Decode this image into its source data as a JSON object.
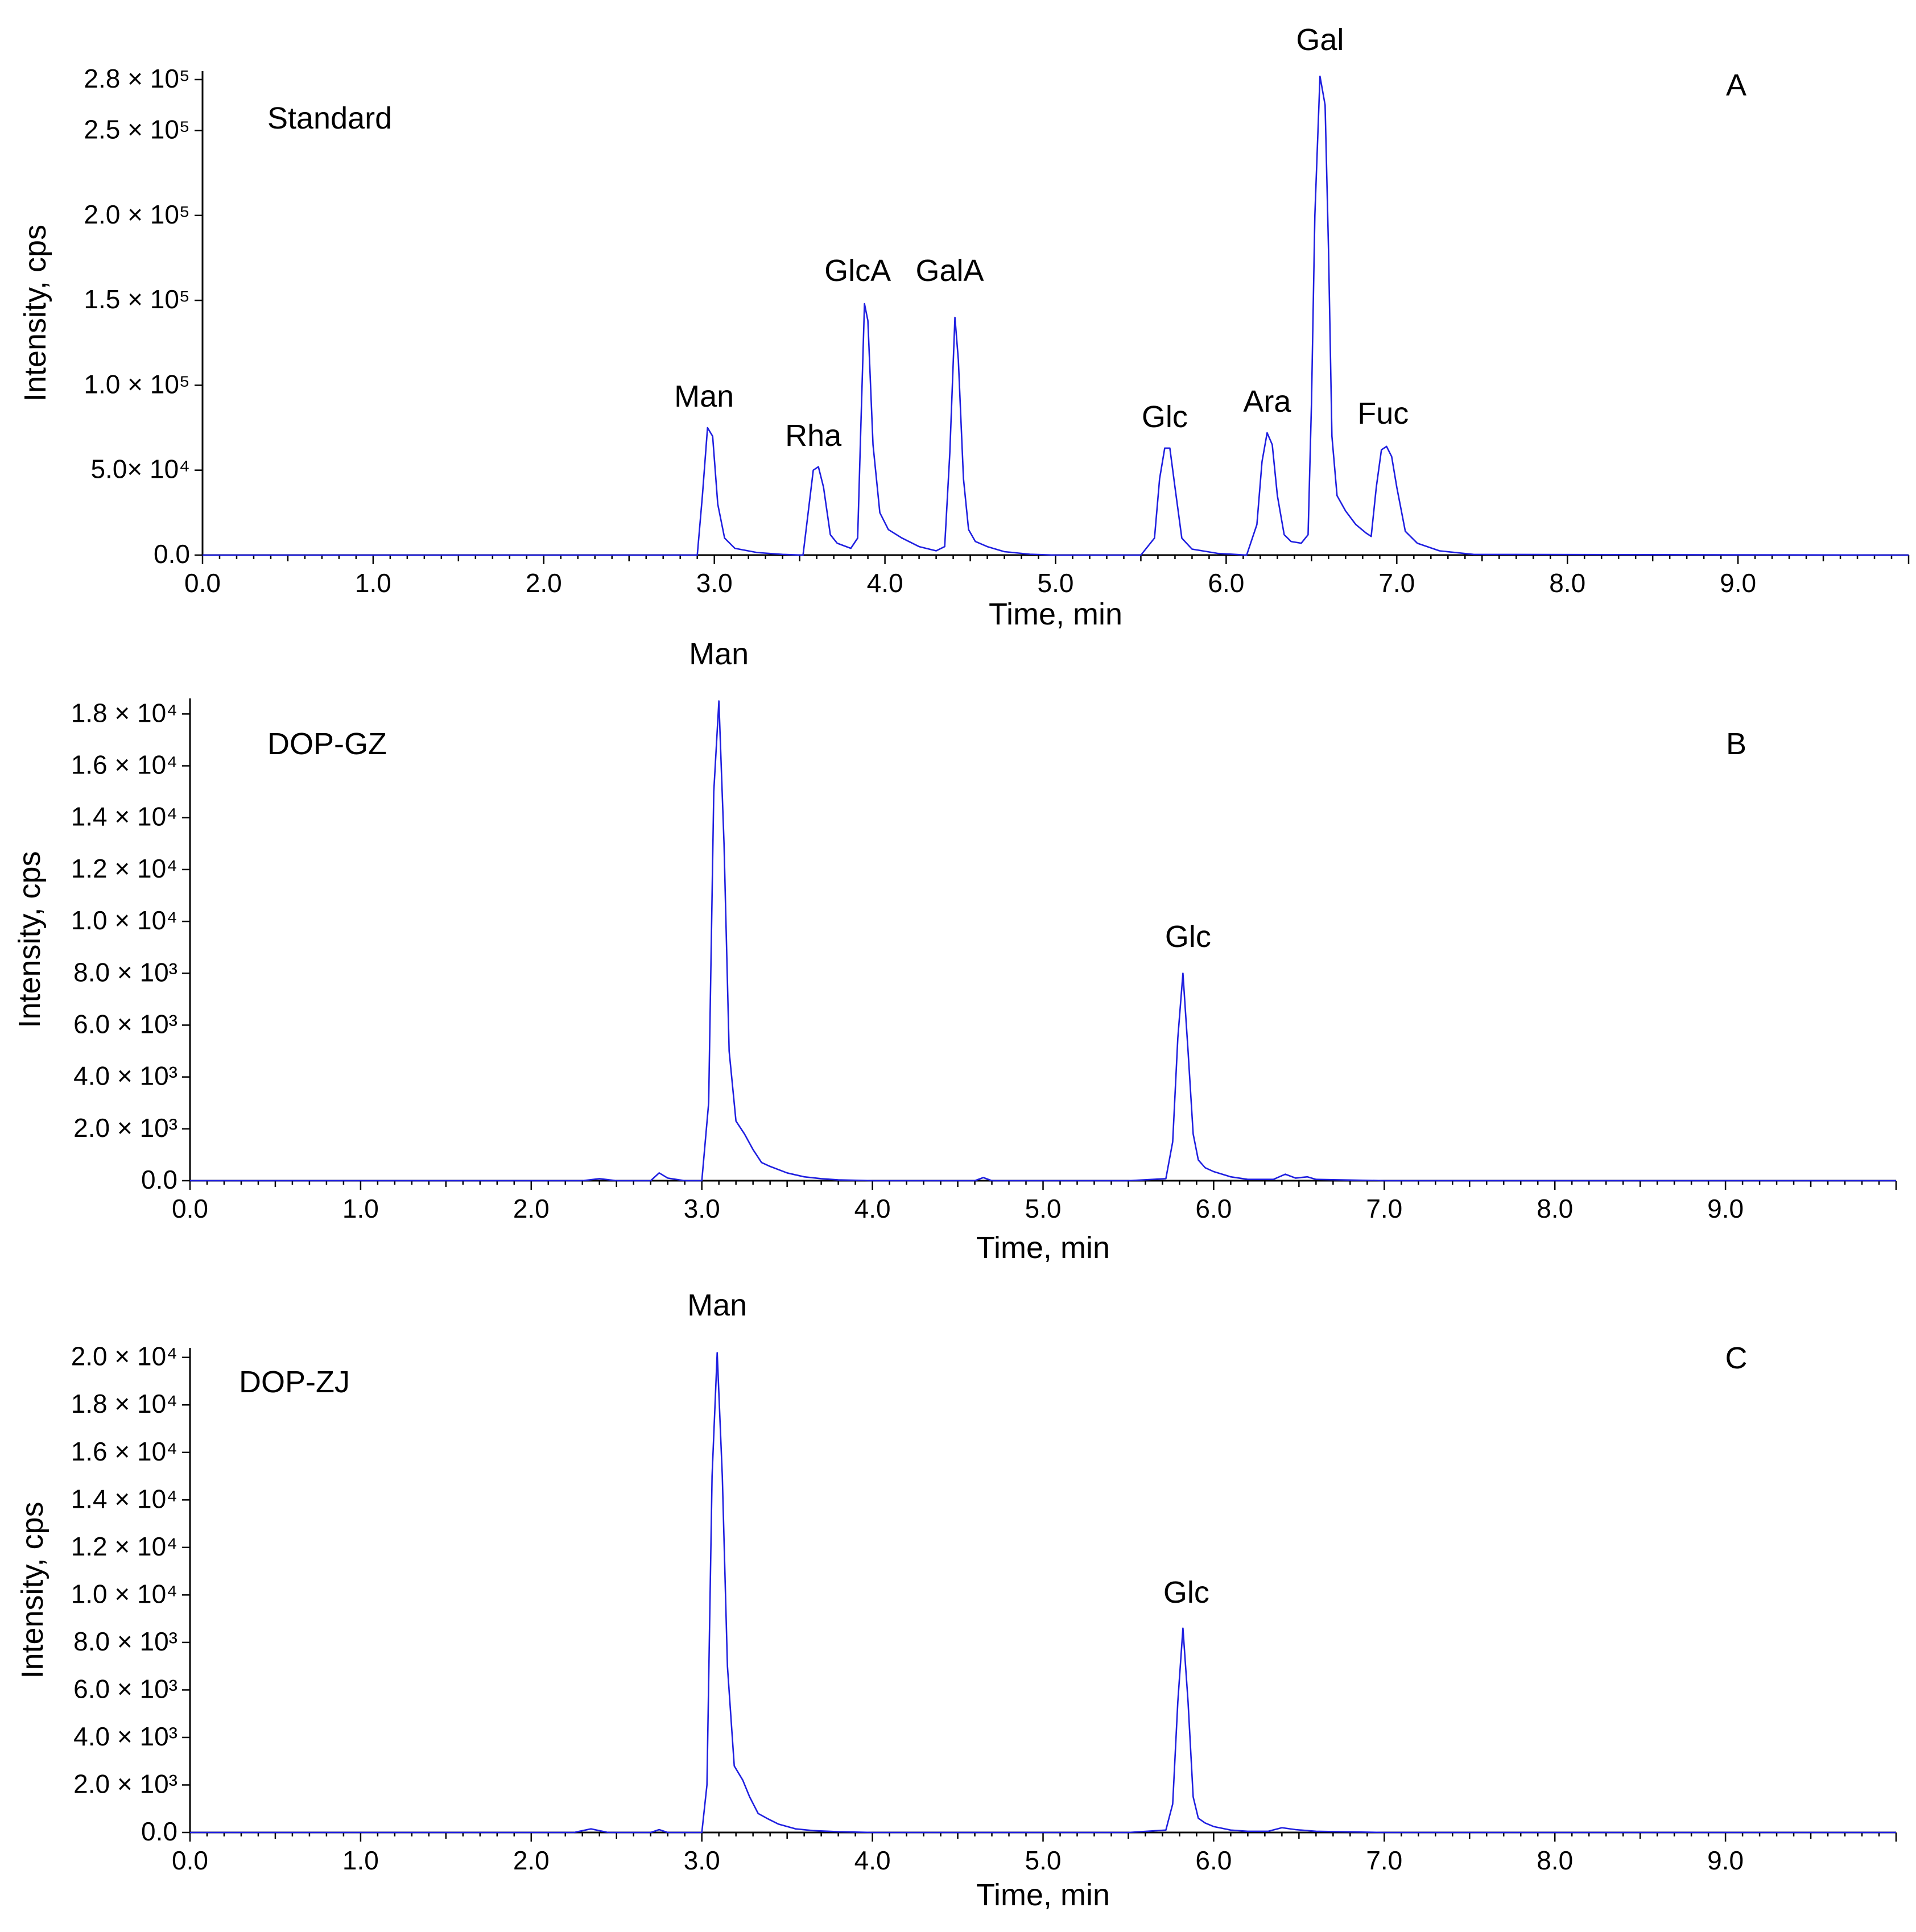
{
  "chart_data": [
    {
      "type": "line",
      "panel_letter": "A",
      "sample_label": "Standard",
      "xlabel": "Time, min",
      "ylabel": "Intensity, cps",
      "xlim": [
        0,
        10
      ],
      "ylim": [
        0,
        285000
      ],
      "xticks": [
        0,
        1,
        2,
        3,
        4,
        5,
        6,
        7,
        8,
        9
      ],
      "xtick_labels": [
        "0.0",
        "1.0",
        "2.0",
        "3.0",
        "4.0",
        "5.0",
        "6.0",
        "7.0",
        "8.0",
        "9.0"
      ],
      "yticks": [
        {
          "value": 0,
          "label": "0.0"
        },
        {
          "value": 50000,
          "label": "5.0× 10⁴"
        },
        {
          "value": 100000,
          "label": "1.0 × 10⁵"
        },
        {
          "value": 150000,
          "label": "1.5 × 10⁵"
        },
        {
          "value": 200000,
          "label": "2.0 × 10⁵"
        },
        {
          "value": 250000,
          "label": "2.5 × 10⁵"
        },
        {
          "value": 280000,
          "label": "2.8 × 10⁵"
        }
      ],
      "grid": false,
      "color": "#1f1fe0",
      "series": [
        {
          "x": [
            0,
            2.9,
            2.93,
            2.96,
            2.99,
            3.02,
            3.06,
            3.12,
            3.25,
            3.4,
            3.52,
            3.55,
            3.58,
            3.61,
            3.64,
            3.68,
            3.72,
            3.8,
            3.84,
            3.86,
            3.88,
            3.9,
            3.93,
            3.97,
            4.02,
            4.1,
            4.2,
            4.3,
            4.35,
            4.38,
            4.41,
            4.43,
            4.46,
            4.49,
            4.53,
            4.6,
            4.7,
            4.85,
            5.0,
            5.5,
            5.58,
            5.61,
            5.64,
            5.67,
            5.7,
            5.74,
            5.8,
            5.95,
            6.12,
            6.18,
            6.21,
            6.24,
            6.27,
            6.3,
            6.34,
            6.38,
            6.44,
            6.48,
            6.5,
            6.52,
            6.55,
            6.58,
            6.6,
            6.62,
            6.65,
            6.7,
            6.76,
            6.82,
            6.85,
            6.88,
            6.91,
            6.94,
            6.97,
            7.0,
            7.05,
            7.12,
            7.25,
            7.45,
            10.0
          ],
          "y": [
            0,
            0,
            35000,
            75000,
            70000,
            30000,
            10000,
            4000,
            1500,
            400,
            0,
            25000,
            50000,
            52000,
            40000,
            12000,
            7000,
            4000,
            10000,
            80000,
            148000,
            138000,
            65000,
            25000,
            15000,
            10000,
            5000,
            2500,
            5000,
            60000,
            140000,
            115000,
            45000,
            15000,
            8000,
            5000,
            2000,
            500,
            0,
            0,
            10000,
            45000,
            63000,
            63000,
            40000,
            10000,
            3500,
            1000,
            0,
            18000,
            55000,
            72000,
            65000,
            35000,
            12000,
            8000,
            7000,
            12000,
            90000,
            200000,
            282000,
            265000,
            180000,
            70000,
            35000,
            26000,
            18000,
            13000,
            11000,
            40000,
            62000,
            64000,
            58000,
            40000,
            14000,
            7000,
            2500,
            400,
            0
          ]
        }
      ],
      "annotations": [
        {
          "text": "Man",
          "x": 2.94,
          "y": 78000
        },
        {
          "text": "Rha",
          "x": 3.58,
          "y": 55000
        },
        {
          "text": "GlcA",
          "x": 3.84,
          "y": 152000
        },
        {
          "text": "GalA",
          "x": 4.38,
          "y": 152000
        },
        {
          "text": "Glc",
          "x": 5.64,
          "y": 66000
        },
        {
          "text": "Ara",
          "x": 6.24,
          "y": 75000
        },
        {
          "text": "Gal",
          "x": 6.55,
          "y": 288000
        },
        {
          "text": "Fuc",
          "x": 6.92,
          "y": 68000
        }
      ]
    },
    {
      "type": "line",
      "panel_letter": "B",
      "sample_label": "DOP-GZ",
      "xlabel": "Time, min",
      "ylabel": "Intensity, cps",
      "xlim": [
        0,
        10
      ],
      "ylim": [
        0,
        18600
      ],
      "xticks": [
        0,
        1,
        2,
        3,
        4,
        5,
        6,
        7,
        8,
        9
      ],
      "xtick_labels": [
        "0.0",
        "1.0",
        "2.0",
        "3.0",
        "4.0",
        "5.0",
        "6.0",
        "7.0",
        "8.0",
        "9.0"
      ],
      "yticks": [
        {
          "value": 0,
          "label": "0.0"
        },
        {
          "value": 2000,
          "label": "2.0 × 10³"
        },
        {
          "value": 4000,
          "label": "4.0 × 10³"
        },
        {
          "value": 6000,
          "label": "6.0 × 10³"
        },
        {
          "value": 8000,
          "label": "8.0 × 10³"
        },
        {
          "value": 10000,
          "label": "1.0 × 10⁴"
        },
        {
          "value": 12000,
          "label": "1.2 × 10⁴"
        },
        {
          "value": 14000,
          "label": "1.4 × 10⁴"
        },
        {
          "value": 16000,
          "label": "1.6 × 10⁴"
        },
        {
          "value": 18000,
          "label": "1.8 × 10⁴"
        }
      ],
      "grid": false,
      "color": "#1f1fe0",
      "series": [
        {
          "x": [
            0,
            2.3,
            2.4,
            2.5,
            2.7,
            2.75,
            2.8,
            2.9,
            3.0,
            3.04,
            3.07,
            3.1,
            3.13,
            3.16,
            3.2,
            3.25,
            3.3,
            3.35,
            3.4,
            3.5,
            3.6,
            3.7,
            3.8,
            4.0,
            4.6,
            4.65,
            4.7,
            5.5,
            5.72,
            5.76,
            5.79,
            5.82,
            5.85,
            5.88,
            5.91,
            5.95,
            6.0,
            6.1,
            6.2,
            6.35,
            6.42,
            6.48,
            6.55,
            6.6,
            7.0,
            10.0
          ],
          "y": [
            0,
            0,
            80,
            0,
            0,
            300,
            100,
            0,
            0,
            3000,
            15000,
            18500,
            13000,
            5000,
            2300,
            1800,
            1200,
            700,
            550,
            300,
            150,
            80,
            30,
            0,
            0,
            120,
            0,
            0,
            80,
            1500,
            5500,
            8000,
            5000,
            1800,
            800,
            500,
            350,
            150,
            50,
            50,
            250,
            100,
            150,
            50,
            0,
            0
          ]
        }
      ],
      "annotations": [
        {
          "text": "Man",
          "x": 3.1,
          "y": 19300
        },
        {
          "text": "Glc",
          "x": 5.85,
          "y": 8400
        }
      ]
    },
    {
      "type": "line",
      "panel_letter": "C",
      "sample_label": "DOP-ZJ",
      "xlabel": "Time, min",
      "ylabel": "Intensity, cps",
      "xlim": [
        0,
        10
      ],
      "ylim": [
        0,
        20400
      ],
      "xticks": [
        0,
        1,
        2,
        3,
        4,
        5,
        6,
        7,
        8,
        9
      ],
      "xtick_labels": [
        "0.0",
        "1.0",
        "2.0",
        "3.0",
        "4.0",
        "5.0",
        "6.0",
        "7.0",
        "8.0",
        "9.0"
      ],
      "yticks": [
        {
          "value": 0,
          "label": "0.0"
        },
        {
          "value": 2000,
          "label": "2.0 × 10³"
        },
        {
          "value": 4000,
          "label": "4.0 × 10³"
        },
        {
          "value": 6000,
          "label": "6.0 × 10³"
        },
        {
          "value": 8000,
          "label": "8.0 × 10³"
        },
        {
          "value": 10000,
          "label": "1.0 × 10⁴"
        },
        {
          "value": 12000,
          "label": "1.2 × 10⁴"
        },
        {
          "value": 14000,
          "label": "1.4 × 10⁴"
        },
        {
          "value": 16000,
          "label": "1.6 × 10⁴"
        },
        {
          "value": 18000,
          "label": "1.8 × 10⁴"
        },
        {
          "value": 20000,
          "label": "2.0 × 10⁴"
        }
      ],
      "grid": false,
      "color": "#1f1fe0",
      "series": [
        {
          "x": [
            0,
            2.25,
            2.35,
            2.45,
            2.7,
            2.75,
            2.8,
            2.95,
            3.0,
            3.03,
            3.06,
            3.09,
            3.12,
            3.15,
            3.19,
            3.24,
            3.28,
            3.33,
            3.38,
            3.45,
            3.55,
            3.65,
            3.8,
            4.0,
            5.5,
            5.72,
            5.76,
            5.79,
            5.82,
            5.85,
            5.88,
            5.91,
            5.95,
            6.0,
            6.1,
            6.2,
            6.32,
            6.4,
            6.48,
            6.6,
            7.0,
            10.0
          ],
          "y": [
            0,
            0,
            150,
            0,
            0,
            120,
            0,
            0,
            0,
            2000,
            15000,
            20200,
            15000,
            7000,
            2800,
            2200,
            1500,
            800,
            600,
            350,
            150,
            80,
            30,
            0,
            0,
            100,
            1200,
            5500,
            8600,
            5500,
            1500,
            600,
            400,
            250,
            100,
            50,
            50,
            200,
            120,
            50,
            0,
            0
          ]
        }
      ],
      "annotations": [
        {
          "text": "Man",
          "x": 3.09,
          "y": 21100
        },
        {
          "text": "Glc",
          "x": 5.84,
          "y": 9000
        }
      ]
    }
  ]
}
